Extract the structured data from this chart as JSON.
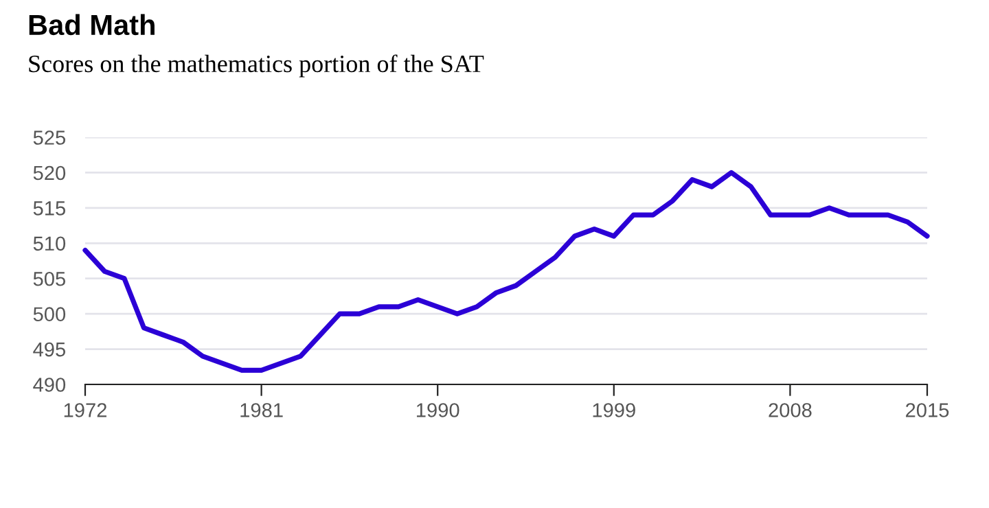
{
  "chart_data": {
    "type": "line",
    "title": "Bad Math",
    "subtitle": "Scores on the mathematics portion of the SAT",
    "x": [
      1972,
      1973,
      1974,
      1975,
      1976,
      1977,
      1978,
      1979,
      1980,
      1981,
      1982,
      1983,
      1984,
      1985,
      1986,
      1987,
      1988,
      1989,
      1990,
      1991,
      1992,
      1993,
      1994,
      1995,
      1996,
      1997,
      1998,
      1999,
      2000,
      2001,
      2002,
      2003,
      2004,
      2005,
      2006,
      2007,
      2008,
      2009,
      2010,
      2011,
      2012,
      2013,
      2014,
      2015
    ],
    "series": [
      {
        "color": "#2b00d6",
        "values": [
          509,
          506,
          505,
          498,
          497,
          496,
          494,
          493,
          492,
          492,
          493,
          494,
          497,
          500,
          500,
          501,
          501,
          502,
          501,
          500,
          501,
          503,
          504,
          506,
          508,
          511,
          512,
          511,
          514,
          514,
          516,
          519,
          518,
          520,
          518,
          514,
          514,
          514,
          515,
          514,
          514,
          514,
          513,
          511
        ]
      }
    ],
    "xlim": [
      1972,
      2015
    ],
    "xticks": [
      1972,
      1981,
      1990,
      1999,
      2008,
      2015
    ],
    "ylim": [
      490,
      525
    ],
    "yticks": [
      490,
      495,
      500,
      505,
      510,
      515,
      520,
      525
    ],
    "grid": "y",
    "marker": "none",
    "line_style": "solid"
  }
}
